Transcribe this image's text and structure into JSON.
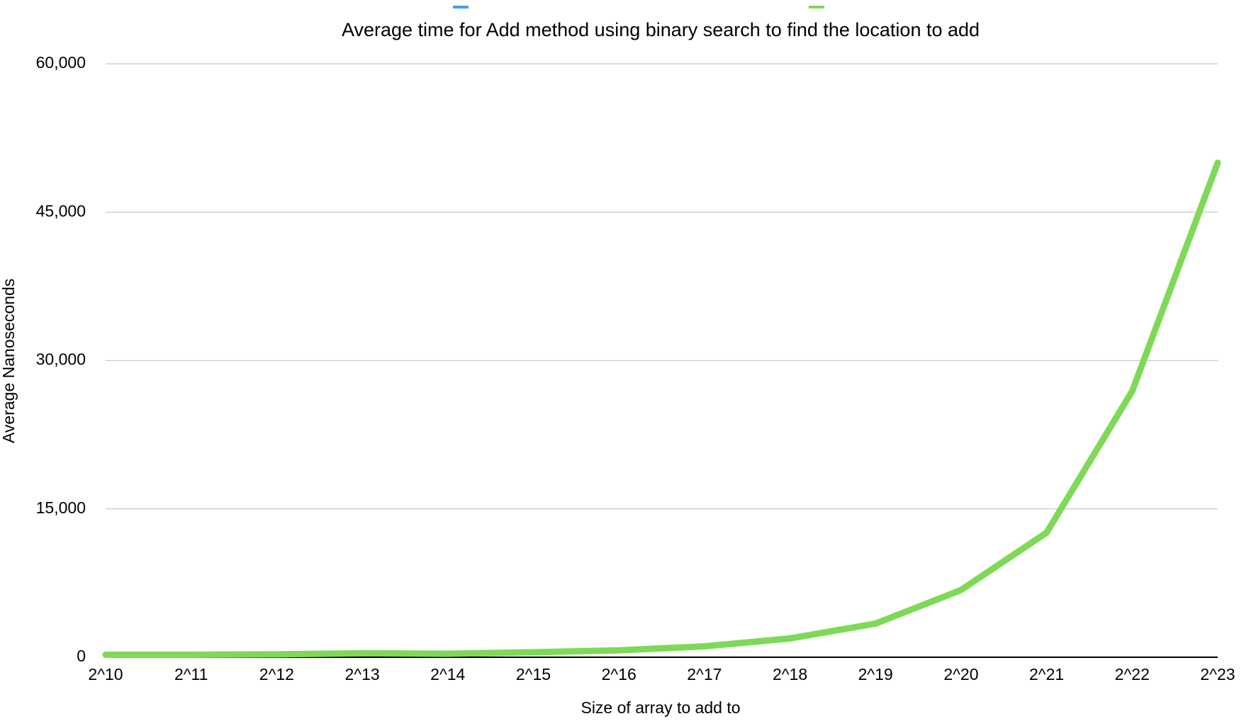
{
  "chart_data": {
    "type": "line",
    "title": "Average time for Add method using binary search to find the location to add",
    "x_label": "Size of array to add to",
    "y_label": "Average Nanoseconds",
    "categories": [
      "2^10",
      "2^11",
      "2^12",
      "2^13",
      "2^14",
      "2^15",
      "2^16",
      "2^17",
      "2^18",
      "2^19",
      "2^20",
      "2^21",
      "2^22",
      "2^23"
    ],
    "series": [
      {
        "color": "#4a9fe8",
        "values": [
          null,
          null,
          null,
          null,
          null,
          null,
          null,
          null,
          null,
          null,
          null,
          null,
          null,
          null
        ]
      },
      {
        "color": "#7ed957",
        "values": [
          250,
          250,
          300,
          400,
          350,
          500,
          700,
          1100,
          1900,
          3400,
          6800,
          12600,
          26900,
          50000
        ]
      }
    ],
    "ylim": [
      0,
      60000
    ],
    "yticks": [
      0,
      {
        "value": 15000,
        "label": "15,000"
      },
      {
        "value": 30000,
        "label": "30,000"
      },
      {
        "value": 45000,
        "label": "45,000"
      },
      {
        "value": 60000,
        "label": "60,000"
      }
    ],
    "grid": true,
    "legend": "top"
  }
}
